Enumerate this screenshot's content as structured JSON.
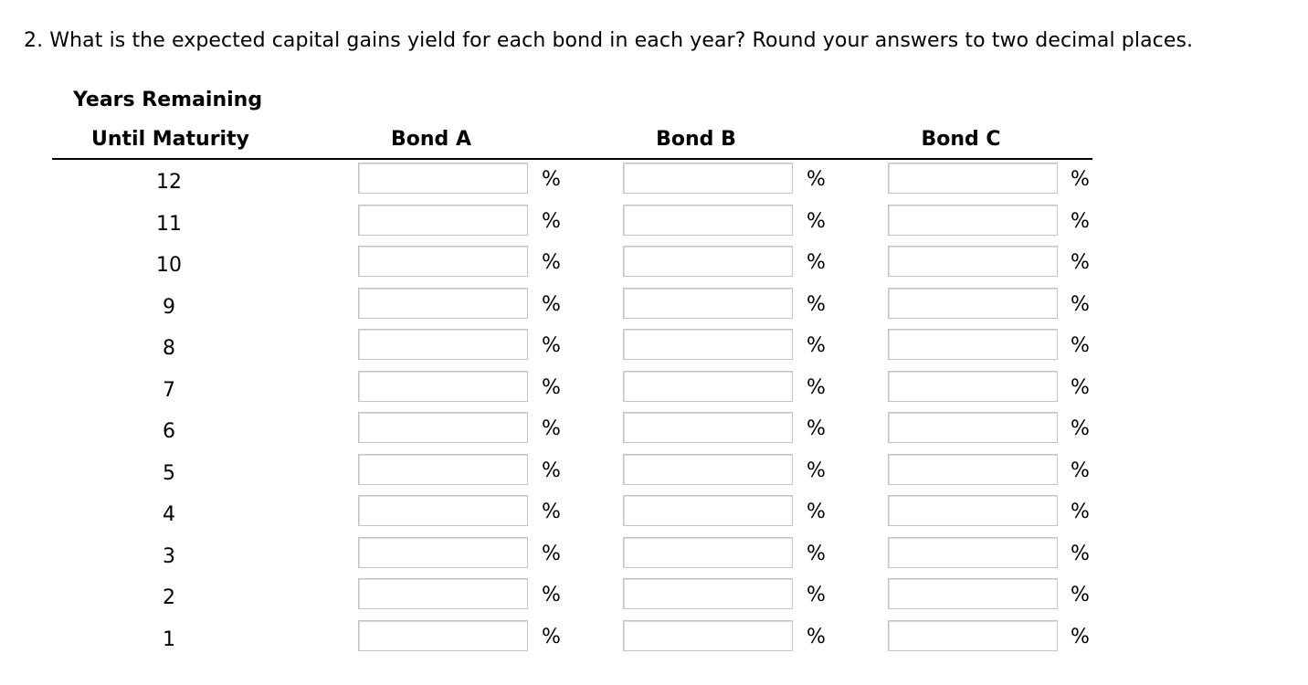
{
  "question": "2. What is the expected capital gains yield for each bond in each year? Round your answers to two decimal places.",
  "table": {
    "header_line1": "Years Remaining",
    "header_line2": "Until Maturity",
    "columns": [
      "Bond A",
      "Bond B",
      "Bond C"
    ],
    "unit": "%",
    "rows": [
      {
        "years": "12",
        "values": [
          "",
          "",
          ""
        ]
      },
      {
        "years": "11",
        "values": [
          "",
          "",
          ""
        ]
      },
      {
        "years": "10",
        "values": [
          "",
          "",
          ""
        ]
      },
      {
        "years": "9",
        "values": [
          "",
          "",
          ""
        ]
      },
      {
        "years": "8",
        "values": [
          "",
          "",
          ""
        ]
      },
      {
        "years": "7",
        "values": [
          "",
          "",
          ""
        ]
      },
      {
        "years": "6",
        "values": [
          "",
          "",
          ""
        ]
      },
      {
        "years": "5",
        "values": [
          "",
          "",
          ""
        ]
      },
      {
        "years": "4",
        "values": [
          "",
          "",
          ""
        ]
      },
      {
        "years": "3",
        "values": [
          "",
          "",
          ""
        ]
      },
      {
        "years": "2",
        "values": [
          "",
          "",
          ""
        ]
      },
      {
        "years": "1",
        "values": [
          "",
          "",
          ""
        ]
      }
    ]
  }
}
